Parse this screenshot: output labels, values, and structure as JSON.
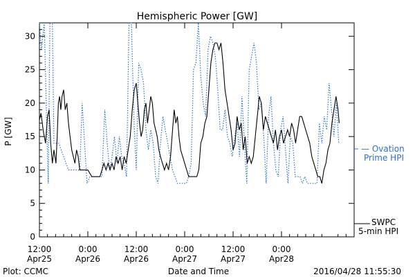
{
  "chart_data": {
    "type": "line",
    "title": "Hemispheric Power [GW]",
    "xlabel": "Date and Time",
    "ylabel": "P [GW]",
    "ylim": [
      0,
      32
    ],
    "yticks": [
      0,
      5,
      10,
      15,
      20,
      25,
      30
    ],
    "xlim_hours": [
      0,
      78
    ],
    "x_unit": "hours after 2016/04/25 12:00",
    "xticks": [
      {
        "hour": 0,
        "line1": "12:00",
        "line2": "Apr25"
      },
      {
        "hour": 12,
        "line1": "0:00",
        "line2": "Apr26"
      },
      {
        "hour": 24,
        "line1": "12:00",
        "line2": "Apr26"
      },
      {
        "hour": 36,
        "line1": "0:00",
        "line2": "Apr27"
      },
      {
        "hour": 48,
        "line1": "12:00",
        "line2": "Apr27"
      },
      {
        "hour": 60,
        "line1": "0:00",
        "line2": "Apr28"
      }
    ],
    "series": [
      {
        "name": "SWPC 5-min HPI",
        "color": "#000000",
        "style": "solid",
        "points": [
          [
            0,
            17.5
          ],
          [
            0.4,
            18.5
          ],
          [
            0.9,
            16
          ],
          [
            1.5,
            14
          ],
          [
            2,
            18
          ],
          [
            2.4,
            19
          ],
          [
            2.8,
            14
          ],
          [
            3.2,
            11
          ],
          [
            3.6,
            13
          ],
          [
            4.1,
            11
          ],
          [
            4.4,
            15
          ],
          [
            4.7,
            20
          ],
          [
            5,
            21
          ],
          [
            5.3,
            19
          ],
          [
            5.6,
            21
          ],
          [
            6,
            22
          ],
          [
            6.4,
            19
          ],
          [
            6.8,
            20
          ],
          [
            7.2,
            17
          ],
          [
            7.6,
            15
          ],
          [
            8,
            13
          ],
          [
            8.4,
            12
          ],
          [
            8.8,
            11
          ],
          [
            9.2,
            13
          ],
          [
            9.6,
            12
          ],
          [
            10,
            10
          ],
          [
            11,
            10
          ],
          [
            12,
            10
          ],
          [
            13,
            9
          ],
          [
            14,
            9
          ],
          [
            15,
            9
          ],
          [
            15.5,
            10
          ],
          [
            16,
            11
          ],
          [
            16.5,
            10
          ],
          [
            17,
            11
          ],
          [
            17.5,
            10
          ],
          [
            18,
            11
          ],
          [
            18.5,
            10
          ],
          [
            19,
            12
          ],
          [
            19.5,
            11
          ],
          [
            20,
            12
          ],
          [
            20.5,
            10
          ],
          [
            21,
            12
          ],
          [
            21.5,
            11
          ],
          [
            22,
            13
          ],
          [
            22.5,
            15
          ],
          [
            23,
            19
          ],
          [
            23.5,
            22
          ],
          [
            24,
            23
          ],
          [
            24.4,
            20
          ],
          [
            24.8,
            17
          ],
          [
            25.2,
            15
          ],
          [
            25.6,
            16
          ],
          [
            26,
            19
          ],
          [
            26.4,
            20
          ],
          [
            26.8,
            17
          ],
          [
            27.2,
            19
          ],
          [
            27.6,
            21
          ],
          [
            28,
            20
          ],
          [
            28.4,
            17
          ],
          [
            28.8,
            16
          ],
          [
            29.2,
            15
          ],
          [
            29.6,
            13
          ],
          [
            30,
            12
          ],
          [
            30.5,
            11
          ],
          [
            31,
            10
          ],
          [
            31.5,
            11
          ],
          [
            32,
            10
          ],
          [
            32.5,
            12
          ],
          [
            33,
            16
          ],
          [
            33.4,
            19
          ],
          [
            33.8,
            17
          ],
          [
            34.2,
            18
          ],
          [
            34.6,
            15
          ],
          [
            35,
            13
          ],
          [
            35.5,
            12
          ],
          [
            36,
            11
          ],
          [
            36.5,
            10
          ],
          [
            37,
            9
          ],
          [
            38,
            9
          ],
          [
            39,
            9
          ],
          [
            39.5,
            10
          ],
          [
            40,
            14
          ],
          [
            40.5,
            15
          ],
          [
            41,
            17
          ],
          [
            41.5,
            18
          ],
          [
            42,
            22
          ],
          [
            42.5,
            26
          ],
          [
            43,
            28
          ],
          [
            43.5,
            29
          ],
          [
            44,
            29
          ],
          [
            44.5,
            28
          ],
          [
            45,
            29
          ],
          [
            45.5,
            26
          ],
          [
            46,
            22
          ],
          [
            46.5,
            20
          ],
          [
            47,
            18
          ],
          [
            47.5,
            16
          ],
          [
            48,
            13
          ],
          [
            48.5,
            14
          ],
          [
            49,
            18
          ],
          [
            49.5,
            16
          ],
          [
            50,
            17
          ],
          [
            50.5,
            13
          ],
          [
            51,
            15
          ],
          [
            51.5,
            11
          ],
          [
            52,
            12
          ],
          [
            52.5,
            11
          ],
          [
            53,
            12
          ],
          [
            53.5,
            15
          ],
          [
            54,
            18
          ],
          [
            54.5,
            21
          ],
          [
            55,
            20
          ],
          [
            55.5,
            16
          ],
          [
            56,
            18
          ],
          [
            56.5,
            17
          ],
          [
            57,
            16
          ],
          [
            57.5,
            15
          ],
          [
            58,
            14
          ],
          [
            58.5,
            16
          ],
          [
            59,
            13
          ],
          [
            59.5,
            15
          ],
          [
            60,
            16
          ],
          [
            60.5,
            14
          ],
          [
            61,
            15
          ],
          [
            61.5,
            16
          ],
          [
            62,
            15
          ],
          [
            62.5,
            17
          ],
          [
            63,
            16
          ],
          [
            63.5,
            14
          ],
          [
            64,
            16
          ],
          [
            64.5,
            18
          ],
          [
            65,
            18
          ],
          [
            65.5,
            17
          ],
          [
            66,
            16
          ],
          [
            66.5,
            15
          ],
          [
            67,
            14
          ],
          [
            67.5,
            12
          ],
          [
            68,
            11
          ],
          [
            68.5,
            10
          ],
          [
            69,
            9
          ],
          [
            69.5,
            9
          ],
          [
            70,
            8
          ],
          [
            70.5,
            10
          ],
          [
            71,
            11
          ],
          [
            71.5,
            13
          ],
          [
            72,
            14
          ],
          [
            72.5,
            17
          ],
          [
            73,
            19
          ],
          [
            73.5,
            21
          ],
          [
            74,
            19
          ],
          [
            74.3,
            17
          ]
        ]
      },
      {
        "name": "Ovation Prime HPI",
        "color": "#2b6fd6",
        "style": "dotted",
        "points": [
          [
            0,
            32
          ],
          [
            0.5,
            28
          ],
          [
            1.2,
            32
          ],
          [
            1.8,
            17
          ],
          [
            2.2,
            8
          ],
          [
            2.6,
            32
          ],
          [
            3.2,
            32
          ],
          [
            3.6,
            14
          ],
          [
            4.2,
            14
          ],
          [
            4.8,
            14
          ],
          [
            5.4,
            13
          ],
          [
            6,
            12
          ],
          [
            6.6,
            11
          ],
          [
            7.2,
            10
          ],
          [
            8,
            10
          ],
          [
            9,
            10
          ],
          [
            10,
            10
          ],
          [
            10.6,
            20
          ],
          [
            11.2,
            14
          ],
          [
            11.8,
            8
          ],
          [
            12.5,
            9
          ],
          [
            13.5,
            9
          ],
          [
            14.5,
            9
          ],
          [
            15.5,
            9
          ],
          [
            16.2,
            19
          ],
          [
            16.8,
            14
          ],
          [
            17.4,
            10
          ],
          [
            18,
            12
          ],
          [
            18.6,
            15
          ],
          [
            19.2,
            11
          ],
          [
            19.8,
            15
          ],
          [
            20.4,
            12
          ],
          [
            21,
            11
          ],
          [
            21.6,
            9
          ],
          [
            22.2,
            32
          ],
          [
            22.8,
            32
          ],
          [
            23.4,
            18
          ],
          [
            24,
            10
          ],
          [
            24.6,
            26
          ],
          [
            25.2,
            25
          ],
          [
            25.8,
            23
          ],
          [
            26.4,
            16
          ],
          [
            27,
            13
          ],
          [
            27.6,
            16
          ],
          [
            28.2,
            14
          ],
          [
            28.8,
            9
          ],
          [
            29.4,
            8
          ],
          [
            30,
            14
          ],
          [
            30.6,
            18
          ],
          [
            31.2,
            16
          ],
          [
            31.8,
            14
          ],
          [
            32.4,
            12
          ],
          [
            33,
            10
          ],
          [
            33.6,
            9
          ],
          [
            34.2,
            8
          ],
          [
            34.8,
            8
          ],
          [
            35.6,
            8
          ],
          [
            36.4,
            8
          ],
          [
            37,
            9
          ],
          [
            37.6,
            11
          ],
          [
            38.2,
            25
          ],
          [
            38.8,
            26
          ],
          [
            39.4,
            32
          ],
          [
            40,
            24
          ],
          [
            40.6,
            20
          ],
          [
            41.2,
            18
          ],
          [
            41.8,
            28
          ],
          [
            42.4,
            30
          ],
          [
            43,
            29
          ],
          [
            43.6,
            27
          ],
          [
            44.2,
            22
          ],
          [
            44.8,
            16
          ],
          [
            45.4,
            16
          ],
          [
            46,
            19
          ],
          [
            46.6,
            15
          ],
          [
            47.2,
            14
          ],
          [
            47.8,
            12
          ],
          [
            48.4,
            15
          ],
          [
            49,
            17
          ],
          [
            49.6,
            12
          ],
          [
            50.2,
            21
          ],
          [
            50.8,
            14
          ],
          [
            51.4,
            8
          ],
          [
            52,
            25
          ],
          [
            52.6,
            27
          ],
          [
            53.2,
            29
          ],
          [
            53.8,
            26
          ],
          [
            54.4,
            19
          ],
          [
            55,
            20
          ],
          [
            55.6,
            15
          ],
          [
            56.2,
            8
          ],
          [
            56.8,
            18
          ],
          [
            57.4,
            21
          ],
          [
            58,
            14
          ],
          [
            58.6,
            10
          ],
          [
            59.2,
            9
          ],
          [
            59.8,
            16
          ],
          [
            60.4,
            18
          ],
          [
            61,
            13
          ],
          [
            61.6,
            8
          ],
          [
            62.2,
            15
          ],
          [
            62.8,
            14
          ],
          [
            63.4,
            9
          ],
          [
            64,
            9
          ],
          [
            64.6,
            9
          ],
          [
            65.2,
            8
          ],
          [
            65.8,
            9
          ],
          [
            66.4,
            8
          ],
          [
            67,
            8
          ],
          [
            67.6,
            8
          ],
          [
            68.2,
            8
          ],
          [
            68.8,
            8
          ],
          [
            69.4,
            17
          ],
          [
            70,
            14
          ],
          [
            70.6,
            18
          ],
          [
            71.2,
            16
          ],
          [
            71.8,
            23
          ],
          [
            72.4,
            19
          ],
          [
            73,
            15
          ],
          [
            73.6,
            20
          ],
          [
            74.2,
            14
          ]
        ]
      }
    ],
    "legend": [
      {
        "line1": "SWPC",
        "line2": "5-min HPI",
        "color": "#000000"
      },
      {
        "line1": "— Ovation",
        "line2": "Prime HPI",
        "color": "#2b6fd6"
      }
    ],
    "footer_left": "Plot: CCMC",
    "footer_right": "2016/04/28 11:55:30",
    "grid": false
  }
}
